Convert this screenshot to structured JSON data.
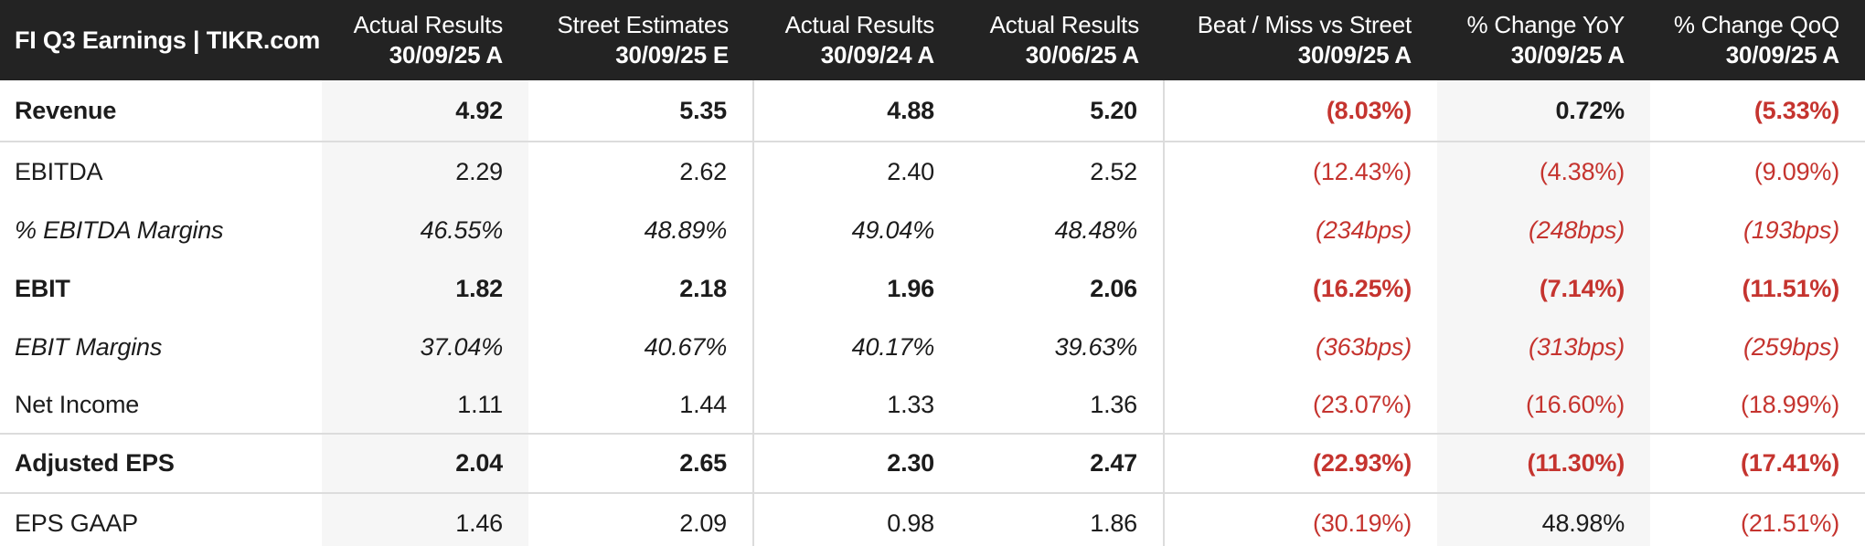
{
  "colors": {
    "header_bg": "#232323",
    "header_text": "#ffffff",
    "text": "#1c1c1c",
    "negative_red": "#c5342f",
    "shaded_column_bg": "#f6f6f6",
    "divider": "#dcdcdc"
  },
  "chart_data": {
    "type": "table",
    "title": "FI Q3 Earnings | TIKR.com",
    "columns": [
      {
        "line1": "Actual Results",
        "line2": "30/09/25 A",
        "shaded": true,
        "group_end": false
      },
      {
        "line1": "Street Estimates",
        "line2": "30/09/25 E",
        "shaded": false,
        "group_end": true
      },
      {
        "line1": "Actual Results",
        "line2": "30/09/24 A",
        "shaded": false,
        "group_end": false
      },
      {
        "line1": "Actual Results",
        "line2": "30/06/25 A",
        "shaded": false,
        "group_end": true
      },
      {
        "line1": "Beat / Miss vs Street",
        "line2": "30/09/25 A",
        "shaded": false,
        "group_end": false
      },
      {
        "line1": "% Change YoY",
        "line2": "30/09/25 A",
        "shaded": true,
        "group_end": false
      },
      {
        "line1": "% Change QoQ",
        "line2": "30/09/25 A",
        "shaded": false,
        "group_end": false
      }
    ],
    "rows": [
      {
        "label": "Revenue",
        "style": "bold",
        "divider_below": true,
        "values": [
          "4.92",
          "5.35",
          "4.88",
          "5.20",
          "(8.03%)",
          "0.72%",
          "(5.33%)"
        ]
      },
      {
        "label": "EBITDA",
        "style": "normal",
        "divider_below": false,
        "values": [
          "2.29",
          "2.62",
          "2.40",
          "2.52",
          "(12.43%)",
          "(4.38%)",
          "(9.09%)"
        ]
      },
      {
        "label": "% EBITDA Margins",
        "style": "italic",
        "divider_below": false,
        "values": [
          "46.55%",
          "48.89%",
          "49.04%",
          "48.48%",
          "(234bps)",
          "(248bps)",
          "(193bps)"
        ]
      },
      {
        "label": "EBIT",
        "style": "bold",
        "divider_below": false,
        "values": [
          "1.82",
          "2.18",
          "1.96",
          "2.06",
          "(16.25%)",
          "(7.14%)",
          "(11.51%)"
        ]
      },
      {
        "label": "EBIT Margins",
        "style": "italic",
        "divider_below": false,
        "values": [
          "37.04%",
          "40.67%",
          "40.17%",
          "39.63%",
          "(363bps)",
          "(313bps)",
          "(259bps)"
        ]
      },
      {
        "label": "Net Income",
        "style": "normal",
        "divider_below": true,
        "values": [
          "1.11",
          "1.44",
          "1.33",
          "1.36",
          "(23.07%)",
          "(16.60%)",
          "(18.99%)"
        ]
      },
      {
        "label": "Adjusted EPS",
        "style": "bold",
        "divider_below": true,
        "values": [
          "2.04",
          "2.65",
          "2.30",
          "2.47",
          "(22.93%)",
          "(11.30%)",
          "(17.41%)"
        ]
      },
      {
        "label": "EPS GAAP",
        "style": "normal",
        "divider_below": false,
        "values": [
          "1.46",
          "2.09",
          "0.98",
          "1.86",
          "(30.19%)",
          "48.98%",
          "(21.51%)"
        ]
      }
    ]
  }
}
